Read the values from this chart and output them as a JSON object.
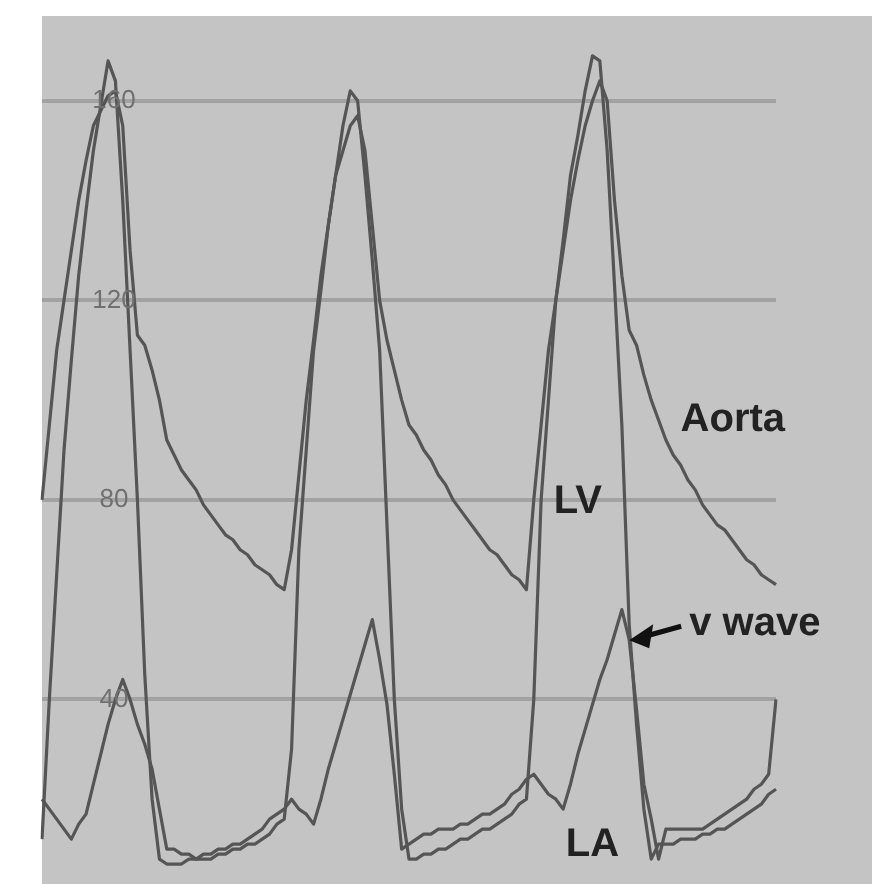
{
  "chart_data": {
    "type": "line",
    "ylim": [
      3,
      177
    ],
    "yticks": [
      40,
      80,
      120,
      160
    ],
    "grid": "y",
    "marker": "none",
    "line_style": "solid",
    "tick_labels": "y",
    "categories": [
      null,
      null,
      null,
      null,
      null,
      null,
      null,
      null,
      null,
      null,
      null,
      null,
      null,
      null,
      null,
      null,
      null,
      null,
      null,
      null,
      null,
      null,
      null,
      null,
      null,
      null,
      null,
      null,
      null,
      null,
      null,
      null,
      null,
      null,
      null,
      null,
      null,
      null,
      null,
      null,
      null,
      null,
      null,
      null,
      null,
      null,
      null,
      null,
      null,
      null,
      null,
      null,
      null,
      null,
      null,
      null,
      null,
      null,
      null,
      null,
      null,
      null,
      null,
      null,
      null,
      null,
      null,
      null,
      null,
      null,
      null,
      null,
      null,
      null,
      null,
      null,
      null,
      null,
      null,
      null,
      null,
      null,
      null,
      null,
      null,
      null,
      null,
      null,
      null,
      null,
      null,
      null,
      null,
      null,
      null,
      null,
      null,
      null,
      null,
      null,
      null
    ],
    "series": [
      {
        "name": "Aorta",
        "color": "#555555",
        "values": [
          80,
          95,
          110,
          120,
          130,
          140,
          148,
          155,
          158,
          161,
          162,
          155,
          130,
          113,
          111,
          106,
          100,
          92,
          89,
          86,
          84,
          82,
          79,
          77,
          75,
          73,
          72,
          70,
          69,
          67,
          66,
          65,
          63,
          62,
          70,
          85,
          100,
          112,
          125,
          135,
          145,
          150,
          155,
          157,
          150,
          135,
          120,
          112,
          106,
          100,
          95,
          93,
          90,
          88,
          85,
          83,
          80,
          78,
          76,
          74,
          72,
          70,
          69,
          67,
          65,
          64,
          62,
          80,
          95,
          110,
          120,
          130,
          140,
          148,
          155,
          160,
          164,
          160,
          140,
          125,
          114,
          111,
          105,
          100,
          96,
          92,
          89,
          87,
          84,
          82,
          79,
          77,
          75,
          74,
          72,
          70,
          68,
          67,
          65,
          64,
          63
        ]
      },
      {
        "name": "LV",
        "color": "#555555",
        "values": [
          12,
          40,
          65,
          90,
          108,
          125,
          138,
          150,
          159,
          168,
          164,
          140,
          110,
          80,
          45,
          20,
          8,
          7,
          7,
          7,
          8,
          8,
          8,
          8,
          9,
          9,
          10,
          10,
          11,
          11,
          12,
          13,
          15,
          16,
          30,
          70,
          90,
          110,
          122,
          135,
          145,
          155,
          162,
          160,
          145,
          128,
          110,
          75,
          40,
          18,
          8,
          8,
          9,
          9,
          10,
          10,
          11,
          12,
          12,
          13,
          14,
          14,
          15,
          16,
          17,
          19,
          20,
          40,
          80,
          100,
          120,
          132,
          145,
          153,
          162,
          169,
          168,
          150,
          123,
          95,
          55,
          35,
          18,
          8,
          11,
          11,
          11,
          12,
          12,
          12,
          13,
          13,
          14,
          14,
          15,
          16,
          17,
          18,
          19,
          21,
          22
        ]
      },
      {
        "name": "LA",
        "color": "#555555",
        "values": [
          20,
          18,
          16,
          14,
          12,
          15,
          17,
          23,
          29,
          35,
          40,
          44,
          40,
          35,
          31,
          26,
          18,
          10,
          10,
          9,
          9,
          8,
          9,
          9,
          10,
          10,
          11,
          11,
          12,
          13,
          14,
          16,
          17,
          18,
          20,
          18,
          17,
          15,
          20,
          26,
          31,
          36,
          41,
          46,
          51,
          56,
          48,
          39,
          25,
          10,
          11,
          12,
          13,
          13,
          14,
          14,
          14,
          15,
          15,
          16,
          17,
          17,
          18,
          19,
          21,
          22,
          24,
          25,
          23,
          21,
          20,
          18,
          23,
          29,
          34,
          39,
          44,
          48,
          53,
          58,
          52,
          38,
          23,
          16,
          8,
          14,
          14,
          14,
          14,
          14,
          14,
          15,
          16,
          17,
          18,
          19,
          20,
          22,
          23,
          25,
          40
        ]
      }
    ],
    "annotations": [
      "v wave"
    ]
  }
}
